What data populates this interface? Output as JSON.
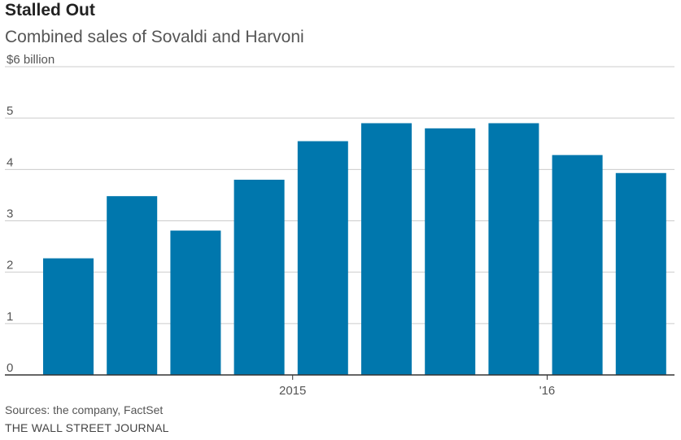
{
  "header": {
    "title": "Stalled Out",
    "subtitle": "Combined sales of Sovaldi and Harvoni"
  },
  "footer": {
    "sources": "Sources: the company, FactSet",
    "credit": "THE WALL STREET JOURNAL"
  },
  "colors": {
    "bar": "#0077ad",
    "grid": "#cccccc",
    "axis": "#333333",
    "text": "#555555"
  },
  "chart_data": {
    "type": "bar",
    "title": "Stalled Out",
    "subtitle": "Combined sales of Sovaldi and Harvoni",
    "ylabel": "",
    "xlabel": "",
    "ylim": [
      0,
      6
    ],
    "yticks": [
      0,
      1,
      2,
      3,
      4,
      5,
      6
    ],
    "ytick_labels": [
      "0",
      "1",
      "2",
      "3",
      "4",
      "5",
      "$6 billion"
    ],
    "x_tick_labels": [
      {
        "index": 4,
        "label": "2015"
      },
      {
        "index": 8,
        "label": "'16"
      }
    ],
    "values": [
      2.27,
      3.48,
      2.81,
      3.8,
      4.55,
      4.9,
      4.8,
      4.9,
      4.28,
      3.93
    ],
    "grid": true,
    "legend": "none"
  }
}
